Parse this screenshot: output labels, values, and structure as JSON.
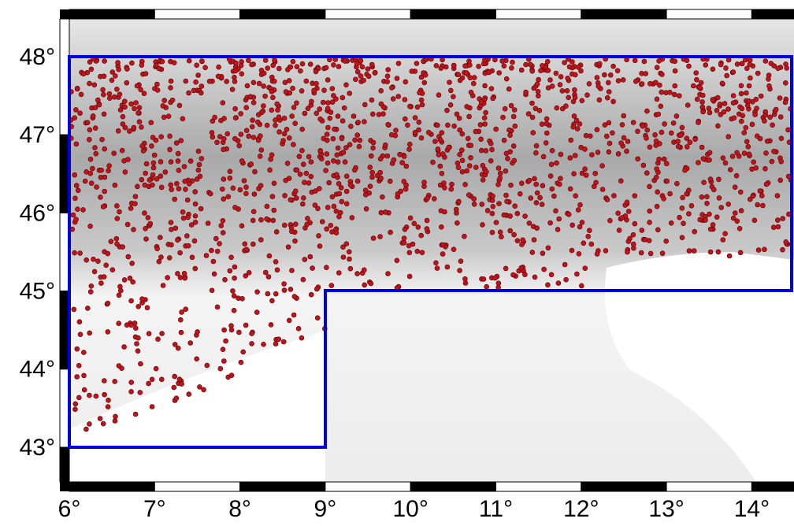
{
  "map": {
    "x_labels": [
      "6°",
      "7°",
      "8°",
      "9°",
      "10°",
      "11°",
      "12°",
      "13°",
      "14°"
    ],
    "y_labels": [
      "48°",
      "47°",
      "46°",
      "45°",
      "44°",
      "43°"
    ]
  }
}
